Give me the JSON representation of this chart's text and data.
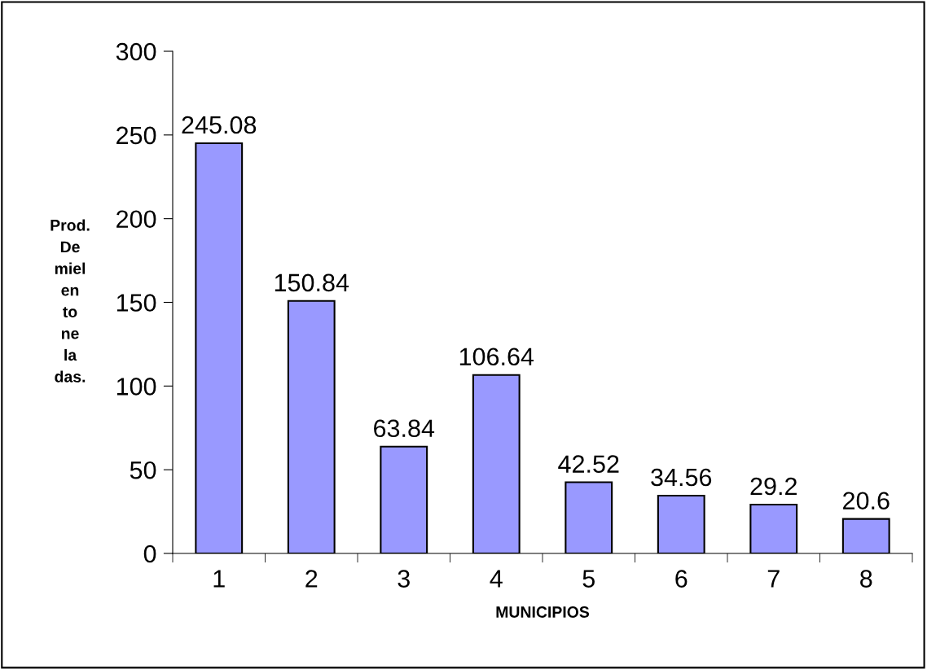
{
  "chart_data": {
    "type": "bar",
    "xlabel": "MUNICIPIOS",
    "ylabel": "Prod.\nDe\nmiel\nen\nto\nne\nla\ndas.",
    "categories": [
      "1",
      "2",
      "3",
      "4",
      "5",
      "6",
      "7",
      "8"
    ],
    "values": [
      245.08,
      150.84,
      63.84,
      106.64,
      42.52,
      34.56,
      29.2,
      20.6
    ],
    "color": "#9999ff",
    "ylim": [
      0,
      300
    ],
    "yticks": [
      0,
      50,
      100,
      150,
      200,
      250,
      300
    ],
    "data_labels": true,
    "grid": false,
    "legend": false
  }
}
